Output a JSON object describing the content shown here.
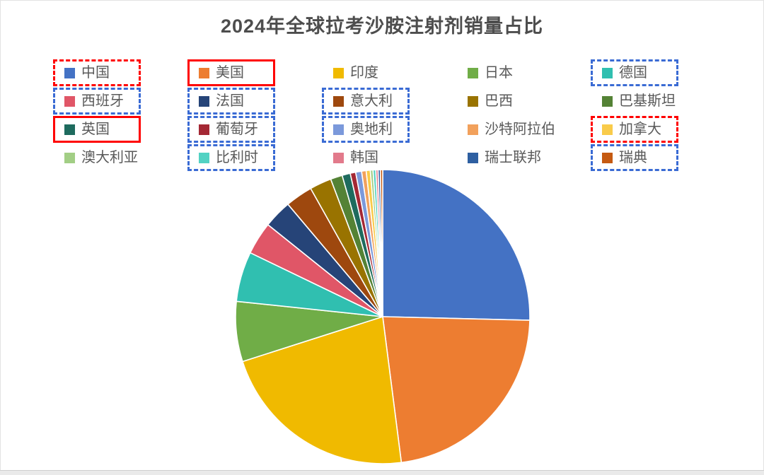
{
  "title": "2024年全球拉考沙胺注射剂销量占比",
  "annotation_colors": {
    "red_box": "#FF0000",
    "blue_box": "#3A6BD4"
  },
  "legend": {
    "columns": 5,
    "rows": 4,
    "position": "top"
  },
  "chart_data": {
    "type": "pie",
    "title": "2024年全球拉考沙胺注射剂销量占比",
    "unit": "percent",
    "start_angle_deg": 0,
    "direction": "clockwise-from-top",
    "slices": [
      {
        "label": "中国",
        "value": 25.4,
        "color": "#4472C4",
        "box": "red-dashed"
      },
      {
        "label": "美国",
        "value": 22.6,
        "color": "#ED7D31",
        "box": "red-solid"
      },
      {
        "label": "印度",
        "value": 22.1,
        "color": "#F0BA00",
        "box": "none"
      },
      {
        "label": "日本",
        "value": 6.6,
        "color": "#70AD47",
        "box": "none"
      },
      {
        "label": "德国",
        "value": 5.5,
        "color": "#30BFB0",
        "box": "blue-dashed"
      },
      {
        "label": "西班牙",
        "value": 3.6,
        "color": "#E05667",
        "box": "blue-dashed"
      },
      {
        "label": "法国",
        "value": 3.1,
        "color": "#264478",
        "box": "blue-dashed"
      },
      {
        "label": "意大利",
        "value": 3.0,
        "color": "#9E480E",
        "box": "blue-dashed"
      },
      {
        "label": "巴西",
        "value": 2.4,
        "color": "#997300",
        "box": "none"
      },
      {
        "label": "巴基斯坦",
        "value": 1.3,
        "color": "#548235",
        "box": "none"
      },
      {
        "label": "英国",
        "value": 0.9,
        "color": "#1E6B5E",
        "box": "red-solid"
      },
      {
        "label": "葡萄牙",
        "value": 0.6,
        "color": "#A42834",
        "box": "blue-dashed"
      },
      {
        "label": "奥地利",
        "value": 0.65,
        "color": "#7B99DB",
        "box": "blue-dashed"
      },
      {
        "label": "沙特阿拉伯",
        "value": 0.5,
        "color": "#F2A15C",
        "box": "none"
      },
      {
        "label": "加拿大",
        "value": 0.45,
        "color": "#F9CB4A",
        "box": "red-dashed"
      },
      {
        "label": "澳大利亚",
        "value": 0.3,
        "color": "#A2CE85",
        "box": "none"
      },
      {
        "label": "比利时",
        "value": 0.3,
        "color": "#52D2C3",
        "box": "blue-dashed"
      },
      {
        "label": "韩国",
        "value": 0.25,
        "color": "#E27A8B",
        "box": "none"
      },
      {
        "label": "瑞士联邦",
        "value": 0.25,
        "color": "#2E5FA1",
        "box": "none"
      },
      {
        "label": "瑞典",
        "value": 0.25,
        "color": "#C55A11",
        "box": "blue-dashed"
      }
    ]
  }
}
